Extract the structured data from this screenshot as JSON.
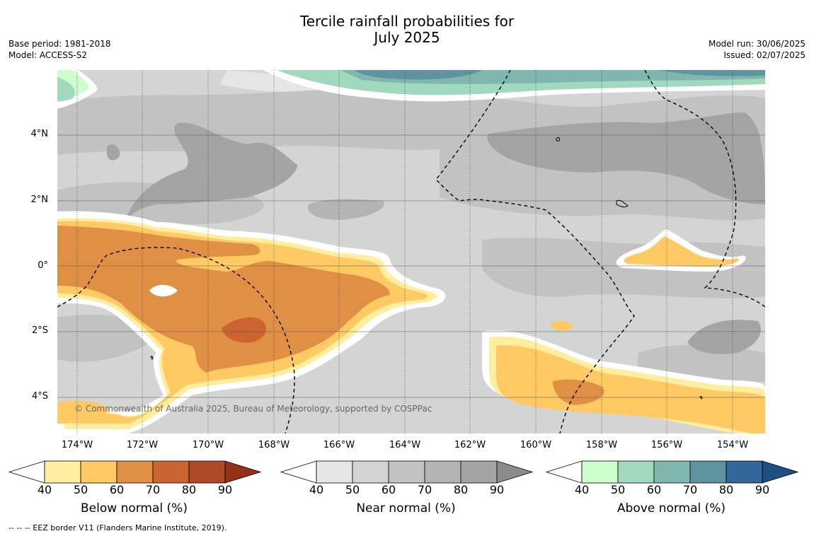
{
  "title": {
    "line1": "Tercile rainfall probabilities for",
    "line2": "July 2025"
  },
  "meta_left": {
    "base_period": "Base period: 1981-2018",
    "model": "Model: ACCESS-S2"
  },
  "meta_right": {
    "model_run": "Model run: 30/06/2025",
    "issued": "Issued: 02/07/2025"
  },
  "map": {
    "lat_labels": [
      "4°N",
      "2°N",
      "0°",
      "2°S",
      "4°S"
    ],
    "lon_labels": [
      "174°W",
      "172°W",
      "170°W",
      "168°W",
      "166°W",
      "164°W",
      "162°W",
      "160°W",
      "158°W",
      "156°W",
      "154°W"
    ],
    "copyright": "© Commonwealth of Australia 2025, Bureau of Meteorology, supported by COSPPac"
  },
  "colorbars": [
    {
      "label": "Below normal (%)",
      "ticks": [
        "40",
        "50",
        "60",
        "70",
        "80",
        "90"
      ],
      "colors": [
        "#ffeea0",
        "#ffc964",
        "#e09044",
        "#cc6431",
        "#b04a26",
        "#933219"
      ]
    },
    {
      "label": "Near normal (%)",
      "ticks": [
        "40",
        "50",
        "60",
        "70",
        "80",
        "90"
      ],
      "colors": [
        "#e6e6e6",
        "#d4d4d4",
        "#c2c2c2",
        "#b4b4b4",
        "#a4a4a4",
        "#8c8c8c"
      ]
    },
    {
      "label": "Above normal (%)",
      "ticks": [
        "40",
        "50",
        "60",
        "70",
        "80",
        "90"
      ],
      "colors": [
        "#ccffcc",
        "#a1d9be",
        "#7fb6ad",
        "#5e94a0",
        "#336699",
        "#1d4f85"
      ]
    }
  ],
  "footnote": "-- -- -- EEZ border V11 (Flanders Marine Institute, 2019)."
}
